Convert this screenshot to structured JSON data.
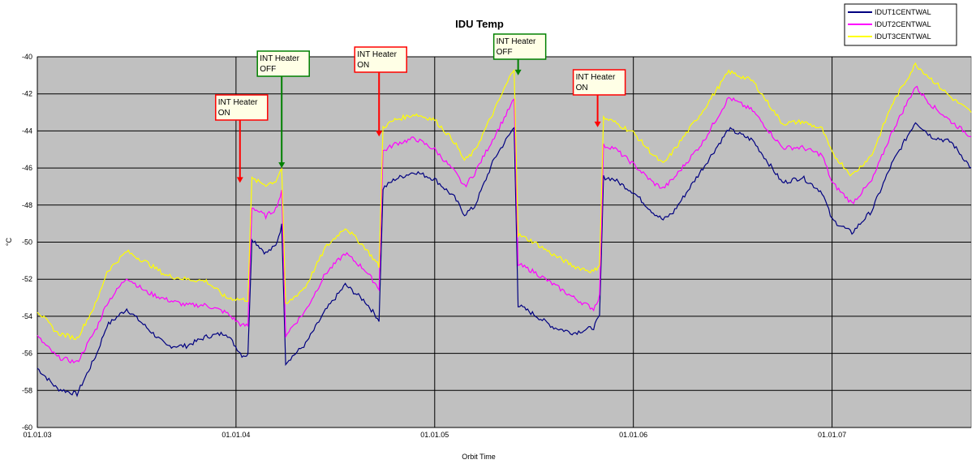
{
  "chart_data": {
    "type": "line",
    "title": "IDU Temp",
    "xlabel": "Orbit Time",
    "ylabel": "°C",
    "ylim": [
      -60,
      -40
    ],
    "yticks": [
      -40,
      -42,
      -44,
      -46,
      -48,
      -50,
      -52,
      -54,
      -56,
      -58,
      -60
    ],
    "xlim": [
      2003.0,
      2007.7
    ],
    "xticks": [
      {
        "value": 2003,
        "label": "01.01.03"
      },
      {
        "value": 2004,
        "label": "01.01.04"
      },
      {
        "value": 2005,
        "label": "01.01.05"
      },
      {
        "value": 2006,
        "label": "01.01.06"
      },
      {
        "value": 2007,
        "label": "01.01.07"
      }
    ],
    "grid": true,
    "plot_background": "#c0c0c0",
    "legend_position": "top-right",
    "series": [
      {
        "name": "IDUT1CENTWAL",
        "color": "#000080",
        "points": [
          [
            2003.0,
            -56.8
          ],
          [
            2003.1,
            -57.9
          ],
          [
            2003.2,
            -58.2
          ],
          [
            2003.3,
            -56.0
          ],
          [
            2003.35,
            -54.5
          ],
          [
            2003.45,
            -53.6
          ],
          [
            2003.55,
            -54.6
          ],
          [
            2003.65,
            -55.6
          ],
          [
            2003.75,
            -55.6
          ],
          [
            2003.85,
            -55.1
          ],
          [
            2003.95,
            -54.9
          ],
          [
            2004.03,
            -56.1
          ],
          [
            2004.06,
            -56.1
          ],
          [
            2004.08,
            -49.8
          ],
          [
            2004.15,
            -50.6
          ],
          [
            2004.2,
            -50.2
          ],
          [
            2004.23,
            -49.1
          ],
          [
            2004.25,
            -56.5
          ],
          [
            2004.35,
            -55.5
          ],
          [
            2004.45,
            -53.7
          ],
          [
            2004.55,
            -52.3
          ],
          [
            2004.65,
            -53.2
          ],
          [
            2004.72,
            -54.2
          ],
          [
            2004.74,
            -47.1
          ],
          [
            2004.8,
            -46.6
          ],
          [
            2004.9,
            -46.2
          ],
          [
            2005.0,
            -46.6
          ],
          [
            2005.1,
            -47.6
          ],
          [
            2005.15,
            -48.5
          ],
          [
            2005.2,
            -48.1
          ],
          [
            2005.3,
            -45.5
          ],
          [
            2005.4,
            -43.8
          ],
          [
            2005.42,
            -53.4
          ],
          [
            2005.5,
            -53.9
          ],
          [
            2005.6,
            -54.6
          ],
          [
            2005.7,
            -54.9
          ],
          [
            2005.8,
            -54.6
          ],
          [
            2005.83,
            -54.0
          ],
          [
            2005.85,
            -46.5
          ],
          [
            2005.9,
            -46.6
          ],
          [
            2006.0,
            -47.3
          ],
          [
            2006.1,
            -48.4
          ],
          [
            2006.15,
            -48.8
          ],
          [
            2006.2,
            -48.4
          ],
          [
            2006.35,
            -46.0
          ],
          [
            2006.48,
            -43.9
          ],
          [
            2006.6,
            -44.5
          ],
          [
            2006.75,
            -46.8
          ],
          [
            2006.85,
            -46.5
          ],
          [
            2006.95,
            -47.3
          ],
          [
            2007.0,
            -48.8
          ],
          [
            2007.1,
            -49.5
          ],
          [
            2007.2,
            -48.3
          ],
          [
            2007.3,
            -45.8
          ],
          [
            2007.42,
            -43.5
          ],
          [
            2007.5,
            -44.3
          ],
          [
            2007.6,
            -44.6
          ],
          [
            2007.7,
            -46.0
          ]
        ]
      },
      {
        "name": "IDUT2CENTWAL",
        "color": "#ff00ff",
        "points": [
          [
            2003.0,
            -55.1
          ],
          [
            2003.1,
            -56.2
          ],
          [
            2003.2,
            -56.5
          ],
          [
            2003.3,
            -54.6
          ],
          [
            2003.35,
            -53.3
          ],
          [
            2003.45,
            -51.9
          ],
          [
            2003.55,
            -52.7
          ],
          [
            2003.65,
            -53.1
          ],
          [
            2003.75,
            -53.4
          ],
          [
            2003.85,
            -53.4
          ],
          [
            2003.95,
            -53.8
          ],
          [
            2004.03,
            -54.5
          ],
          [
            2004.06,
            -54.5
          ],
          [
            2004.08,
            -48.1
          ],
          [
            2004.15,
            -48.6
          ],
          [
            2004.2,
            -48.2
          ],
          [
            2004.23,
            -47.3
          ],
          [
            2004.25,
            -55.0
          ],
          [
            2004.35,
            -53.7
          ],
          [
            2004.45,
            -51.7
          ],
          [
            2004.55,
            -50.6
          ],
          [
            2004.65,
            -51.5
          ],
          [
            2004.72,
            -52.5
          ],
          [
            2004.74,
            -45.1
          ],
          [
            2004.8,
            -44.7
          ],
          [
            2004.9,
            -44.4
          ],
          [
            2005.0,
            -45.0
          ],
          [
            2005.1,
            -46.2
          ],
          [
            2005.15,
            -47.0
          ],
          [
            2005.2,
            -46.3
          ],
          [
            2005.3,
            -44.3
          ],
          [
            2005.4,
            -42.3
          ],
          [
            2005.42,
            -51.2
          ],
          [
            2005.5,
            -51.6
          ],
          [
            2005.6,
            -52.3
          ],
          [
            2005.7,
            -53.0
          ],
          [
            2005.8,
            -53.6
          ],
          [
            2005.83,
            -52.9
          ],
          [
            2005.85,
            -44.8
          ],
          [
            2005.9,
            -44.9
          ],
          [
            2006.0,
            -45.8
          ],
          [
            2006.1,
            -46.8
          ],
          [
            2006.15,
            -47.1
          ],
          [
            2006.2,
            -46.6
          ],
          [
            2006.35,
            -44.6
          ],
          [
            2006.48,
            -42.2
          ],
          [
            2006.6,
            -42.9
          ],
          [
            2006.75,
            -44.9
          ],
          [
            2006.85,
            -44.9
          ],
          [
            2006.95,
            -45.3
          ],
          [
            2007.0,
            -46.8
          ],
          [
            2007.1,
            -47.9
          ],
          [
            2007.2,
            -46.7
          ],
          [
            2007.3,
            -44.1
          ],
          [
            2007.42,
            -41.6
          ],
          [
            2007.5,
            -42.6
          ],
          [
            2007.6,
            -43.5
          ],
          [
            2007.7,
            -44.3
          ]
        ]
      },
      {
        "name": "IDUT3CENTWAL",
        "color": "#ffff00",
        "points": [
          [
            2003.0,
            -53.7
          ],
          [
            2003.1,
            -54.9
          ],
          [
            2003.2,
            -55.2
          ],
          [
            2003.3,
            -53.2
          ],
          [
            2003.35,
            -51.6
          ],
          [
            2003.45,
            -50.5
          ],
          [
            2003.55,
            -51.1
          ],
          [
            2003.65,
            -51.8
          ],
          [
            2003.75,
            -52.0
          ],
          [
            2003.85,
            -52.1
          ],
          [
            2003.95,
            -53.0
          ],
          [
            2004.03,
            -53.1
          ],
          [
            2004.06,
            -53.1
          ],
          [
            2004.08,
            -46.6
          ],
          [
            2004.15,
            -46.9
          ],
          [
            2004.2,
            -46.7
          ],
          [
            2004.23,
            -46.0
          ],
          [
            2004.25,
            -53.4
          ],
          [
            2004.35,
            -52.4
          ],
          [
            2004.45,
            -50.3
          ],
          [
            2004.55,
            -49.2
          ],
          [
            2004.65,
            -50.3
          ],
          [
            2004.72,
            -51.3
          ],
          [
            2004.74,
            -43.8
          ],
          [
            2004.8,
            -43.4
          ],
          [
            2004.9,
            -43.1
          ],
          [
            2005.0,
            -43.4
          ],
          [
            2005.1,
            -44.6
          ],
          [
            2005.15,
            -45.6
          ],
          [
            2005.2,
            -45.1
          ],
          [
            2005.3,
            -42.9
          ],
          [
            2005.4,
            -40.6
          ],
          [
            2005.42,
            -49.6
          ],
          [
            2005.5,
            -50.0
          ],
          [
            2005.6,
            -50.7
          ],
          [
            2005.7,
            -51.3
          ],
          [
            2005.8,
            -51.6
          ],
          [
            2005.83,
            -51.2
          ],
          [
            2005.85,
            -43.3
          ],
          [
            2005.9,
            -43.5
          ],
          [
            2006.0,
            -44.1
          ],
          [
            2006.1,
            -45.3
          ],
          [
            2006.15,
            -45.8
          ],
          [
            2006.2,
            -45.1
          ],
          [
            2006.35,
            -42.9
          ],
          [
            2006.48,
            -40.8
          ],
          [
            2006.6,
            -41.3
          ],
          [
            2006.75,
            -43.6
          ],
          [
            2006.85,
            -43.5
          ],
          [
            2006.95,
            -43.9
          ],
          [
            2007.0,
            -45.2
          ],
          [
            2007.1,
            -46.4
          ],
          [
            2007.2,
            -45.3
          ],
          [
            2007.3,
            -42.6
          ],
          [
            2007.42,
            -40.4
          ],
          [
            2007.5,
            -41.2
          ],
          [
            2007.6,
            -42.2
          ],
          [
            2007.7,
            -43.0
          ]
        ]
      }
    ],
    "annotations": [
      {
        "line1": "INT Heater",
        "line2": "ON",
        "x": 2004.02,
        "y": -46.8,
        "border_color": "#ff0000",
        "arrow_color": "#ff0000"
      },
      {
        "line1": "INT Heater",
        "line2": "OFF",
        "x": 2004.23,
        "y": -46.0,
        "border_color": "#008000",
        "arrow_color": "#008000"
      },
      {
        "line1": "INT Heater",
        "line2": "ON",
        "x": 2004.72,
        "y": -44.3,
        "border_color": "#ff0000",
        "arrow_color": "#ff0000"
      },
      {
        "line1": "INT Heater",
        "line2": "OFF",
        "x": 2005.42,
        "y": -41.0,
        "border_color": "#008000",
        "arrow_color": "#008000"
      },
      {
        "line1": "INT Heater",
        "line2": "ON",
        "x": 2005.82,
        "y": -43.8,
        "border_color": "#ff0000",
        "arrow_color": "#ff0000"
      }
    ]
  }
}
